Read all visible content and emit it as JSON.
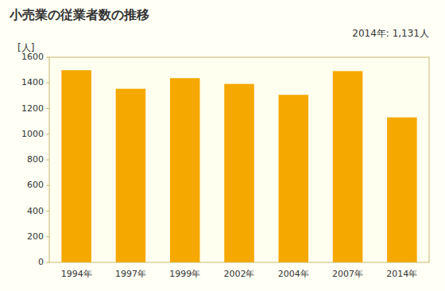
{
  "chart_data": {
    "type": "bar",
    "title": "小売業の従業者数の推移",
    "ylabel": "[人]",
    "annotation": "2014年: 1,131人",
    "categories": [
      "1994年",
      "1997年",
      "1999年",
      "2002年",
      "2004年",
      "2007年",
      "2014年"
    ],
    "values": [
      1499,
      1354,
      1437,
      1392,
      1307,
      1492,
      1131
    ],
    "color": "#F5A800",
    "ylim": [
      0,
      1600
    ],
    "yticks": [
      0,
      200,
      400,
      600,
      800,
      1000,
      1200,
      1400,
      1600
    ],
    "grid": false
  }
}
